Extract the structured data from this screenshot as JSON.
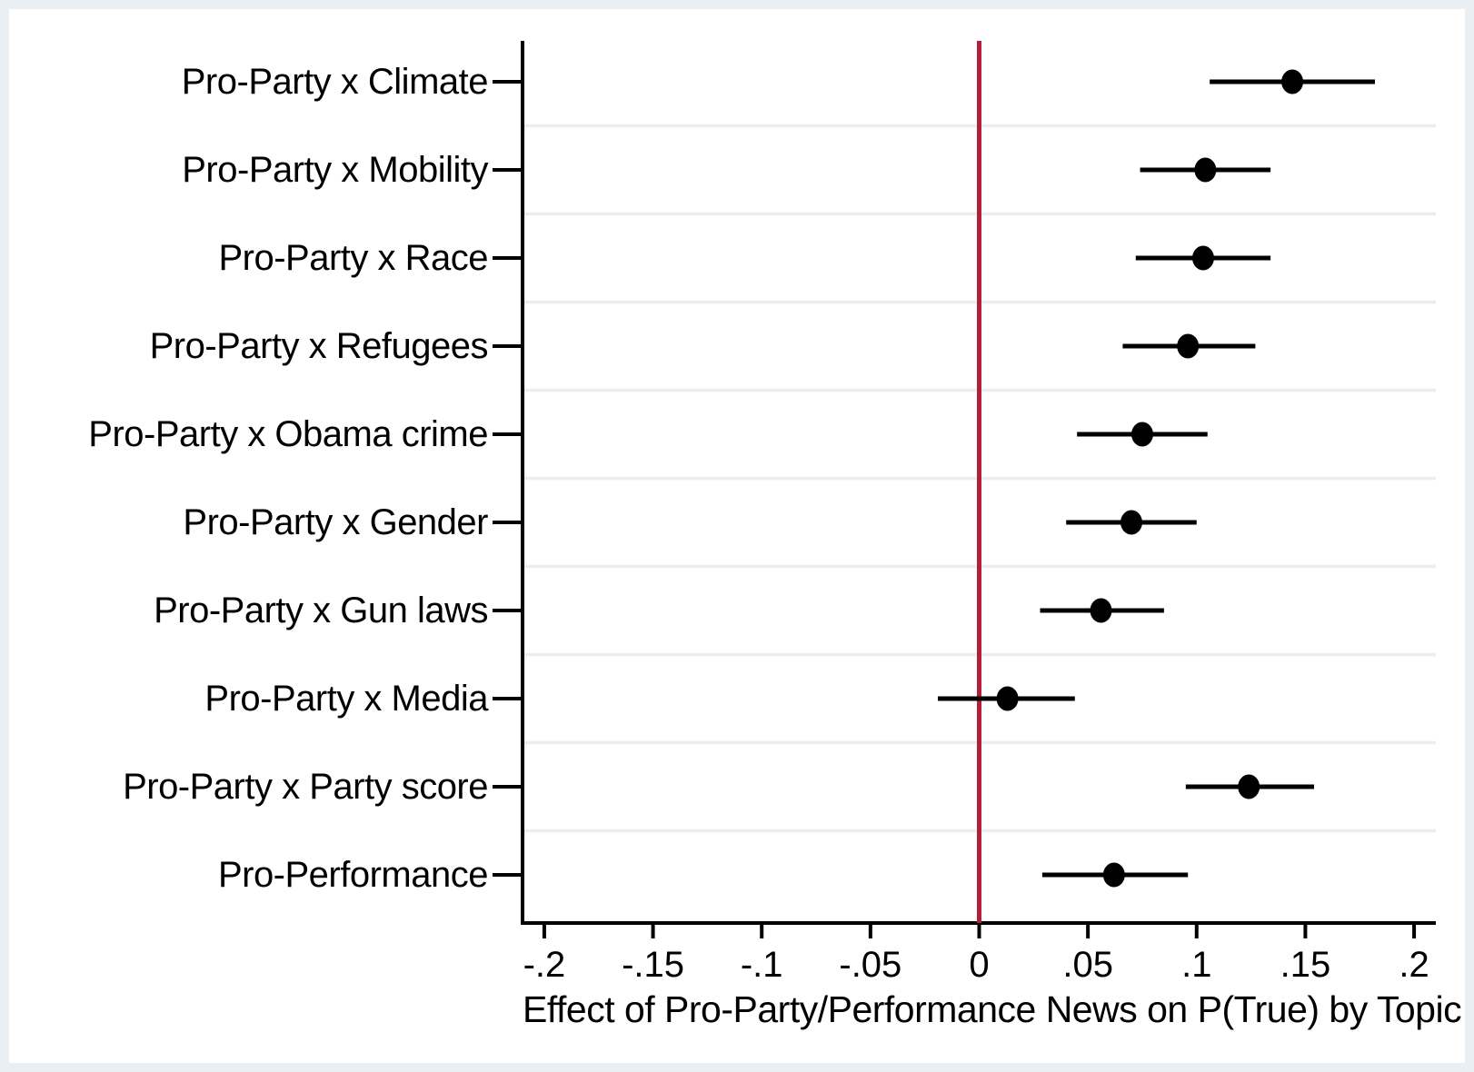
{
  "chart_data": {
    "type": "scatter",
    "subtype": "coefficient-plot-with-confidence-intervals",
    "orientation": "horizontal",
    "title": "",
    "xlabel": "Effect of Pro-Party/Performance News on P(True) by Topic",
    "ylabel": "",
    "legend": "none",
    "grid": "horizontal gridlines between category rows",
    "xlim": [
      -0.21,
      0.21
    ],
    "x_ticks": {
      "labels": [
        "-.2",
        "-.15",
        "-.1",
        "-.05",
        "0",
        ".05",
        ".1",
        ".15",
        ".2"
      ],
      "values": [
        -0.2,
        -0.15,
        -0.1,
        -0.05,
        0,
        0.05,
        0.1,
        0.15,
        0.2
      ]
    },
    "reference_line": {
      "x": 0,
      "color": "#b22037"
    },
    "categories": [
      "Pro-Party x Climate",
      "Pro-Party x Mobility",
      "Pro-Party x Race",
      "Pro-Party x Refugees",
      "Pro-Party x Obama crime",
      "Pro-Party x Gender",
      "Pro-Party x Gun laws",
      "Pro-Party x Media",
      "Pro-Party x Party score",
      "Pro-Performance"
    ],
    "points": [
      {
        "label": "Pro-Party x Climate",
        "estimate": 0.144,
        "ci_low": 0.106,
        "ci_high": 0.182
      },
      {
        "label": "Pro-Party x Mobility",
        "estimate": 0.104,
        "ci_low": 0.074,
        "ci_high": 0.134
      },
      {
        "label": "Pro-Party x Race",
        "estimate": 0.103,
        "ci_low": 0.072,
        "ci_high": 0.134
      },
      {
        "label": "Pro-Party x Refugees",
        "estimate": 0.096,
        "ci_low": 0.066,
        "ci_high": 0.127
      },
      {
        "label": "Pro-Party x Obama crime",
        "estimate": 0.075,
        "ci_low": 0.045,
        "ci_high": 0.105
      },
      {
        "label": "Pro-Party x Gender",
        "estimate": 0.07,
        "ci_low": 0.04,
        "ci_high": 0.1
      },
      {
        "label": "Pro-Party x Gun laws",
        "estimate": 0.056,
        "ci_low": 0.028,
        "ci_high": 0.085
      },
      {
        "label": "Pro-Party x Media",
        "estimate": 0.013,
        "ci_low": -0.019,
        "ci_high": 0.044
      },
      {
        "label": "Pro-Party x Party score",
        "estimate": 0.124,
        "ci_low": 0.095,
        "ci_high": 0.154
      },
      {
        "label": "Pro-Performance",
        "estimate": 0.062,
        "ci_low": 0.029,
        "ci_high": 0.096
      }
    ],
    "colors": {
      "marker": "#000000",
      "ci_line": "#000000",
      "axis": "#000000",
      "zero_line": "#b22037",
      "gridline": "#e9eef1",
      "frame": "#e9eff3",
      "background": "#ffffff"
    }
  }
}
